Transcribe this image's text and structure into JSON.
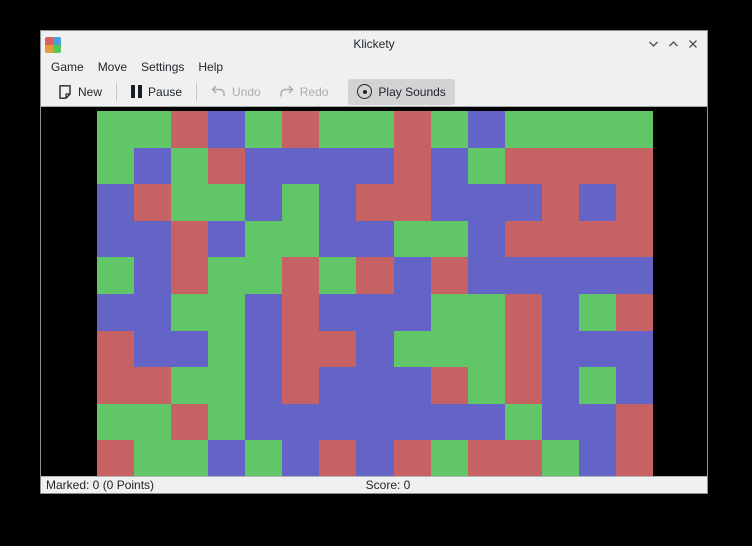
{
  "window": {
    "title": "Klickety",
    "controls": [
      {
        "name": "minimize",
        "icon": "chevron-down-icon"
      },
      {
        "name": "maximize",
        "icon": "chevron-up-icon"
      },
      {
        "name": "close",
        "icon": "close-x-icon"
      }
    ]
  },
  "app_icon": {
    "name": "klickety-blocks-icon",
    "quadrant_colors": [
      "#dd5f5f",
      "#4b9fd5",
      "#e89b3c",
      "#57c757"
    ]
  },
  "menu": {
    "items": [
      "Game",
      "Move",
      "Settings",
      "Help"
    ]
  },
  "toolbar": {
    "new_label": "New",
    "pause_label": "Pause",
    "undo_label": "Undo",
    "redo_label": "Redo",
    "play_sounds_label": "Play Sounds",
    "icons": [
      "document-new-icon",
      "pause-bars-icon",
      "undo-arrow-icon",
      "redo-arrow-icon",
      "circle-dot-icon"
    ],
    "disabled_items": [
      "Undo",
      "Redo"
    ],
    "toggled_on": [
      "Play Sounds"
    ]
  },
  "status": {
    "marked": "Marked: 0 (0 Points)",
    "score": "Score: 0"
  },
  "ui_colors": {
    "chrome_bg": "#eff0f1",
    "content_bg": "#000000",
    "pressed_button_bg": "#d2d3d5",
    "disabled_text": "#aaacae",
    "text": "#232629"
  },
  "board": {
    "cols": 15,
    "rows": 10,
    "colors": {
      "G": "#61c667",
      "R": "#c66263",
      "B": "#6364c6"
    },
    "grid": [
      "GGRBGRGGRGBGGGG",
      "GBGRBBBBRBGRRRR",
      "BRGGBGBRRBBBRBR",
      "BBRBGGBBGGBRRRR",
      "GBRGGRGRBRBBBBB",
      "BBGGBRBBBGGRBGR",
      "RBBGBRRBGGGRBBB",
      "RRGGBRBBBRGRBGB",
      "GGRGBBBBBBBGBBR",
      "RGGBGBRBRGRRGBR"
    ]
  }
}
